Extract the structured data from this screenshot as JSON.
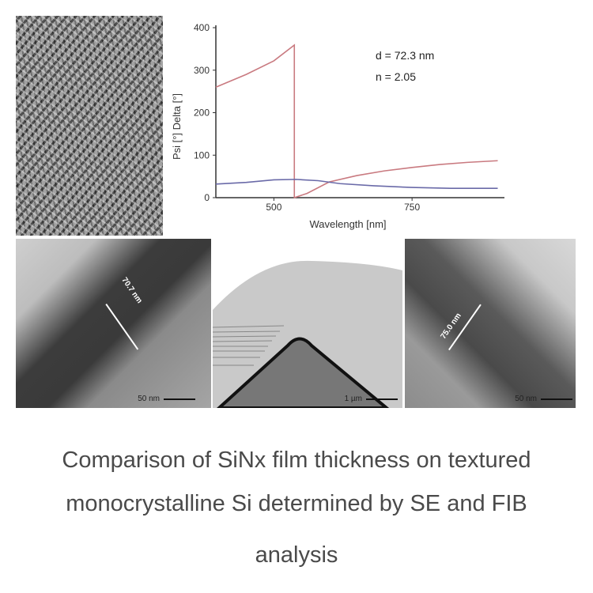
{
  "chart_data": {
    "type": "line",
    "xlabel": "Wavelength [nm]",
    "ylabel": "Psi [°] Delta [°]",
    "xlim": [
      395,
      910
    ],
    "ylim": [
      0,
      400
    ],
    "xticks": [
      500,
      750
    ],
    "yticks": [
      0,
      100,
      200,
      300,
      400
    ],
    "grid": false,
    "annotations": [
      "d = 72.3 nm",
      "n = 2.05"
    ],
    "series": [
      {
        "color": "#c97a80",
        "points": [
          [
            395,
            260
          ],
          [
            450,
            290
          ],
          [
            500,
            322
          ],
          [
            537,
            359
          ],
          [
            537,
            0
          ],
          [
            560,
            10
          ],
          [
            600,
            37
          ],
          [
            650,
            52
          ],
          [
            700,
            63
          ],
          [
            750,
            71
          ],
          [
            800,
            78
          ],
          [
            850,
            83
          ],
          [
            905,
            87
          ]
        ]
      },
      {
        "color": "#6a6aa8",
        "points": [
          [
            395,
            32
          ],
          [
            450,
            36
          ],
          [
            500,
            42
          ],
          [
            540,
            43
          ],
          [
            580,
            40
          ],
          [
            620,
            33
          ],
          [
            680,
            28
          ],
          [
            750,
            24
          ],
          [
            820,
            22
          ],
          [
            905,
            22
          ]
        ]
      }
    ]
  },
  "micrographs": {
    "left_measure": "70.7 nm",
    "left_scale": "50 nm",
    "middle_scale": "1 µm",
    "right_measure": "75.0 nm",
    "right_scale": "50 nm"
  },
  "caption": {
    "line1": "Comparison of SiNx film thickness on textured",
    "line2": "monocrystalline Si determined by SE and FIB",
    "line3": "analysis"
  }
}
